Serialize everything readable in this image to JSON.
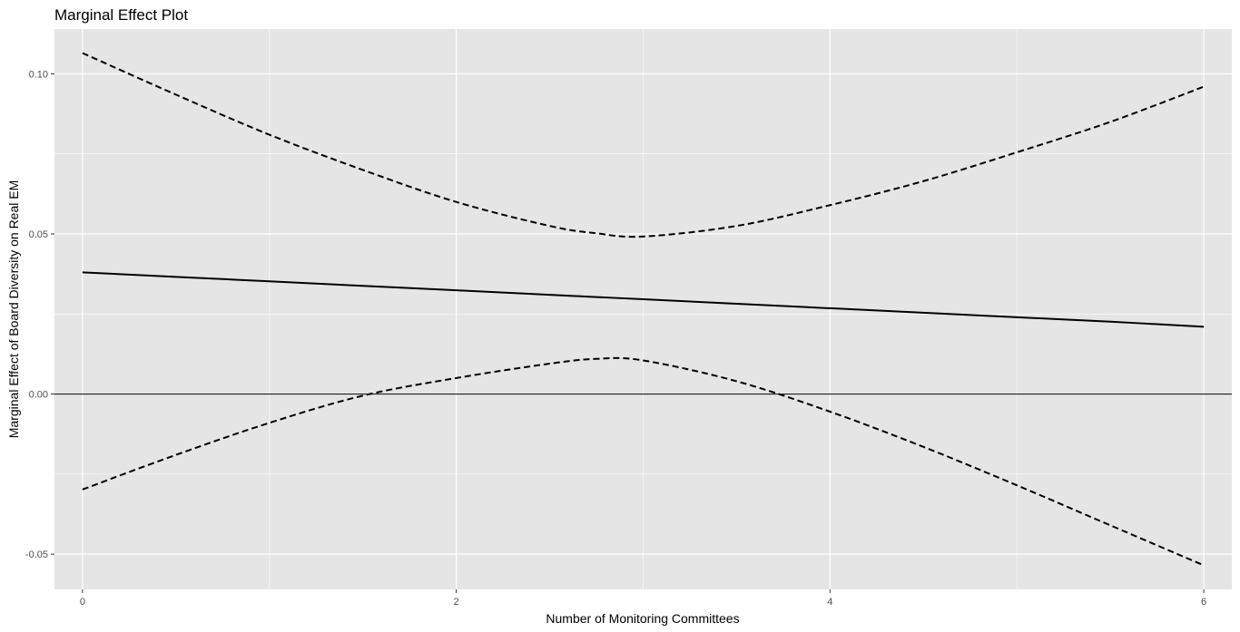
{
  "chart_data": {
    "type": "line",
    "title": "Marginal Effect Plot",
    "xlabel": "Number of Monitoring Committees",
    "ylabel": "Marginal Effect of Board Diversity on Real EM",
    "xlim": [
      -0.15,
      6.15
    ],
    "ylim": [
      -0.061,
      0.114
    ],
    "x_ticks": [
      0,
      2,
      4,
      6
    ],
    "x_tick_labels": [
      "0",
      "2",
      "4",
      "6"
    ],
    "y_ticks": [
      -0.05,
      0.0,
      0.05,
      0.1
    ],
    "y_tick_labels": [
      "-0.05",
      "0.00",
      "0.05",
      "0.10"
    ],
    "grid": true,
    "reference_line": 0.0,
    "x": [
      0,
      0.5,
      1,
      1.5,
      2,
      2.5,
      2.75,
      3,
      3.5,
      4,
      4.5,
      5,
      5.5,
      6
    ],
    "series": [
      {
        "style": "solid",
        "values": [
          0.038,
          0.0366,
          0.0352,
          0.0338,
          0.0324,
          0.031,
          0.0303,
          0.0296,
          0.0282,
          0.0268,
          0.0254,
          0.024,
          0.0226,
          0.021
        ]
      },
      {
        "style": "dashed",
        "values": [
          0.1065,
          0.0935,
          0.081,
          0.07,
          0.06,
          0.0525,
          0.0502,
          0.0492,
          0.0525,
          0.059,
          0.0665,
          0.0755,
          0.085,
          0.096
        ]
      },
      {
        "style": "dashed",
        "values": [
          -0.0298,
          -0.019,
          -0.009,
          -0.0005,
          0.005,
          0.0095,
          0.011,
          0.0105,
          0.004,
          -0.0055,
          -0.0165,
          -0.0285,
          -0.041,
          -0.0535
        ]
      }
    ],
    "colors": {
      "panel": "#e5e5e5",
      "grid": "#ffffff",
      "line": "#000000",
      "tick": "#4d4d4d"
    }
  }
}
